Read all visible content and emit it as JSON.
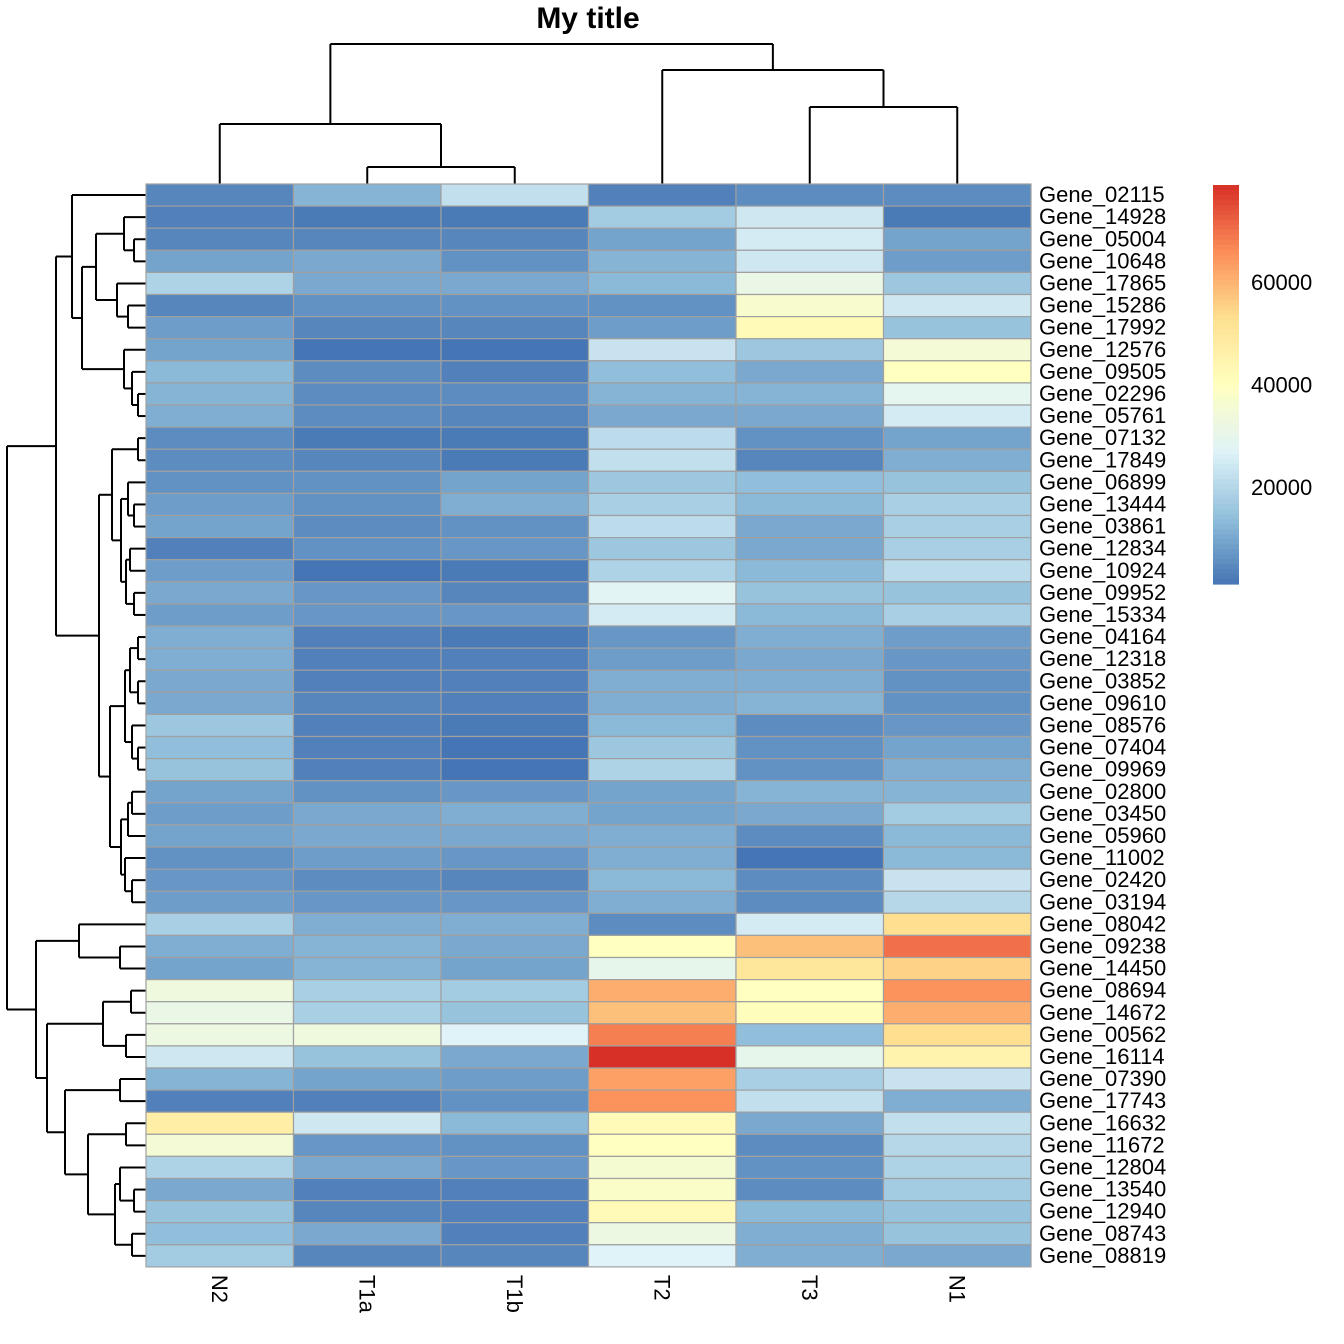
{
  "chart_data": {
    "type": "heatmap",
    "title": "My title",
    "columns": [
      "N2",
      "T1a",
      "T1b",
      "T2",
      "T3",
      "N1"
    ],
    "rows": [
      {
        "gene": "Gene_02115",
        "values": [
          4000,
          12000,
          22000,
          3000,
          5000,
          5000
        ]
      },
      {
        "gene": "Gene_14928",
        "values": [
          3000,
          2000,
          2000,
          17000,
          24000,
          2000
        ]
      },
      {
        "gene": "Gene_05004",
        "values": [
          4000,
          4000,
          4000,
          9000,
          25000,
          9000
        ]
      },
      {
        "gene": "Gene_10648",
        "values": [
          9000,
          10000,
          6000,
          12000,
          24000,
          8000
        ]
      },
      {
        "gene": "Gene_17865",
        "values": [
          19000,
          10000,
          10000,
          13000,
          31000,
          16000
        ]
      },
      {
        "gene": "Gene_15286",
        "values": [
          4000,
          6000,
          6000,
          6000,
          37000,
          24000
        ]
      },
      {
        "gene": "Gene_17992",
        "values": [
          8000,
          4000,
          4000,
          8000,
          42000,
          15000
        ]
      },
      {
        "gene": "Gene_12576",
        "values": [
          9000,
          1000,
          1000,
          23000,
          16000,
          35000
        ]
      },
      {
        "gene": "Gene_09505",
        "values": [
          13000,
          5000,
          3000,
          14000,
          10000,
          40000
        ]
      },
      {
        "gene": "Gene_02296",
        "values": [
          12000,
          5000,
          5000,
          12000,
          12000,
          29000
        ]
      },
      {
        "gene": "Gene_05761",
        "values": [
          11000,
          5000,
          4000,
          10000,
          10000,
          25000
        ]
      },
      {
        "gene": "Gene_07132",
        "values": [
          5000,
          2000,
          2000,
          21000,
          6000,
          9000
        ]
      },
      {
        "gene": "Gene_17849",
        "values": [
          5000,
          4000,
          2000,
          22000,
          4000,
          11000
        ]
      },
      {
        "gene": "Gene_06899",
        "values": [
          6000,
          6000,
          9000,
          16000,
          14000,
          15000
        ]
      },
      {
        "gene": "Gene_13444",
        "values": [
          8000,
          6000,
          11000,
          18000,
          13000,
          18000
        ]
      },
      {
        "gene": "Gene_03861",
        "values": [
          9000,
          5000,
          6000,
          21000,
          10000,
          18000
        ]
      },
      {
        "gene": "Gene_12834",
        "values": [
          3000,
          6000,
          7000,
          16000,
          10000,
          18000
        ]
      },
      {
        "gene": "Gene_10924",
        "values": [
          8000,
          1000,
          2000,
          19000,
          13000,
          21000
        ]
      },
      {
        "gene": "Gene_09952",
        "values": [
          10000,
          7000,
          4000,
          28000,
          15000,
          15000
        ]
      },
      {
        "gene": "Gene_15334",
        "values": [
          8000,
          7000,
          7000,
          25000,
          13000,
          18000
        ]
      },
      {
        "gene": "Gene_04164",
        "values": [
          11000,
          3000,
          2000,
          7000,
          11000,
          8000
        ]
      },
      {
        "gene": "Gene_12318",
        "values": [
          11000,
          3000,
          3000,
          8000,
          10000,
          7000
        ]
      },
      {
        "gene": "Gene_03852",
        "values": [
          10000,
          3000,
          3000,
          11000,
          11000,
          6000
        ]
      },
      {
        "gene": "Gene_09610",
        "values": [
          10000,
          4000,
          3000,
          11000,
          12000,
          6000
        ]
      },
      {
        "gene": "Gene_08576",
        "values": [
          16000,
          3000,
          2000,
          13000,
          5000,
          7000
        ]
      },
      {
        "gene": "Gene_07404",
        "values": [
          14000,
          3000,
          1000,
          16000,
          6000,
          9000
        ]
      },
      {
        "gene": "Gene_09969",
        "values": [
          15000,
          3000,
          1000,
          19000,
          6000,
          11000
        ]
      },
      {
        "gene": "Gene_02800",
        "values": [
          9000,
          6000,
          7000,
          9000,
          12000,
          12000
        ]
      },
      {
        "gene": "Gene_03450",
        "values": [
          8000,
          10000,
          11000,
          9000,
          10000,
          17000
        ]
      },
      {
        "gene": "Gene_05960",
        "values": [
          9000,
          10000,
          10000,
          11000,
          5000,
          13000
        ]
      },
      {
        "gene": "Gene_11002",
        "values": [
          6000,
          8000,
          7000,
          11000,
          1000,
          13000
        ]
      },
      {
        "gene": "Gene_02420",
        "values": [
          7000,
          5000,
          4000,
          13000,
          5000,
          23000
        ]
      },
      {
        "gene": "Gene_03194",
        "values": [
          8000,
          7000,
          7000,
          11000,
          5000,
          20000
        ]
      },
      {
        "gene": "Gene_08042",
        "values": [
          18000,
          11000,
          11000,
          5000,
          25000,
          53000
        ]
      },
      {
        "gene": "Gene_09238",
        "values": [
          11000,
          12000,
          10000,
          40000,
          58000,
          70000
        ]
      },
      {
        "gene": "Gene_14450",
        "values": [
          9000,
          12000,
          9000,
          30000,
          50000,
          55000
        ]
      },
      {
        "gene": "Gene_08694",
        "values": [
          33000,
          18000,
          17000,
          61000,
          40000,
          65000
        ]
      },
      {
        "gene": "Gene_14672",
        "values": [
          31000,
          18000,
          15000,
          58000,
          41000,
          61000
        ]
      },
      {
        "gene": "Gene_00562",
        "values": [
          32000,
          33000,
          27000,
          68000,
          14000,
          53000
        ]
      },
      {
        "gene": "Gene_16114",
        "values": [
          24000,
          15000,
          10000,
          79000,
          30000,
          45000
        ]
      },
      {
        "gene": "Gene_07390",
        "values": [
          12000,
          9000,
          8000,
          63000,
          18000,
          23000
        ]
      },
      {
        "gene": "Gene_17743",
        "values": [
          3000,
          3000,
          6000,
          65000,
          22000,
          11000
        ]
      },
      {
        "gene": "Gene_16632",
        "values": [
          47000,
          24000,
          13000,
          42000,
          10000,
          22000
        ]
      },
      {
        "gene": "Gene_11672",
        "values": [
          35000,
          7000,
          6000,
          40000,
          5000,
          20000
        ]
      },
      {
        "gene": "Gene_12804",
        "values": [
          19000,
          10000,
          7000,
          36000,
          6000,
          19000
        ]
      },
      {
        "gene": "Gene_13540",
        "values": [
          10000,
          3000,
          3000,
          38000,
          5000,
          17000
        ]
      },
      {
        "gene": "Gene_12940",
        "values": [
          15000,
          4000,
          3000,
          42000,
          13000,
          15000
        ]
      },
      {
        "gene": "Gene_08743",
        "values": [
          14000,
          10000,
          3000,
          32000,
          11000,
          15000
        ]
      },
      {
        "gene": "Gene_08819",
        "values": [
          17000,
          4000,
          4000,
          27000,
          11000,
          10000
        ]
      }
    ],
    "color_scale": {
      "min": 1000,
      "max": 79000,
      "colors": [
        "#4575B4",
        "#91BFDB",
        "#E0F3F8",
        "#FFFFBF",
        "#FEE090",
        "#FC8D59",
        "#D73027"
      ]
    },
    "legend_ticks": [
      "20000",
      "40000",
      "60000"
    ],
    "legend_tick_values": [
      20000,
      40000,
      60000
    ],
    "cell_border_color": "#A0A0A0",
    "row_dendrogram": true,
    "column_dendrogram": true
  }
}
